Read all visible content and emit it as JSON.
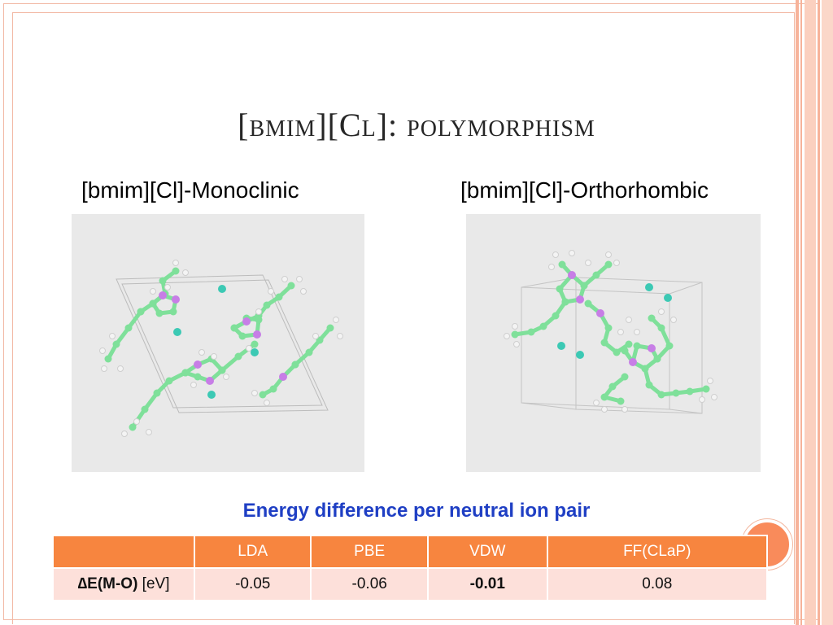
{
  "slide": {
    "title": "[bmim][Cl]: polymorphism",
    "left_label": "[bmim][Cl]-Monoclinic",
    "right_label": "[bmim][Cl]-Orthorhombic",
    "caption": "Energy difference per neutral ion pair"
  },
  "table": {
    "headers": [
      "",
      "LDA",
      "PBE",
      "VDW",
      "FF(CLaP)"
    ],
    "row_label_symbol": "∆",
    "row_label_bold": "E(M-O)",
    "row_label_unit": " [eV]",
    "values": [
      "-0.05",
      "-0.06",
      "-0.01",
      "0.08"
    ]
  },
  "colors": {
    "header_bg": "#f7853f",
    "row_bg": "#fde0da",
    "caption": "#1f3fc4",
    "carbon": "#7fe09a",
    "nitrogen": "#c77ee6",
    "hydrogen": "#f4f4f4",
    "chloride": "#3cc9b4"
  }
}
